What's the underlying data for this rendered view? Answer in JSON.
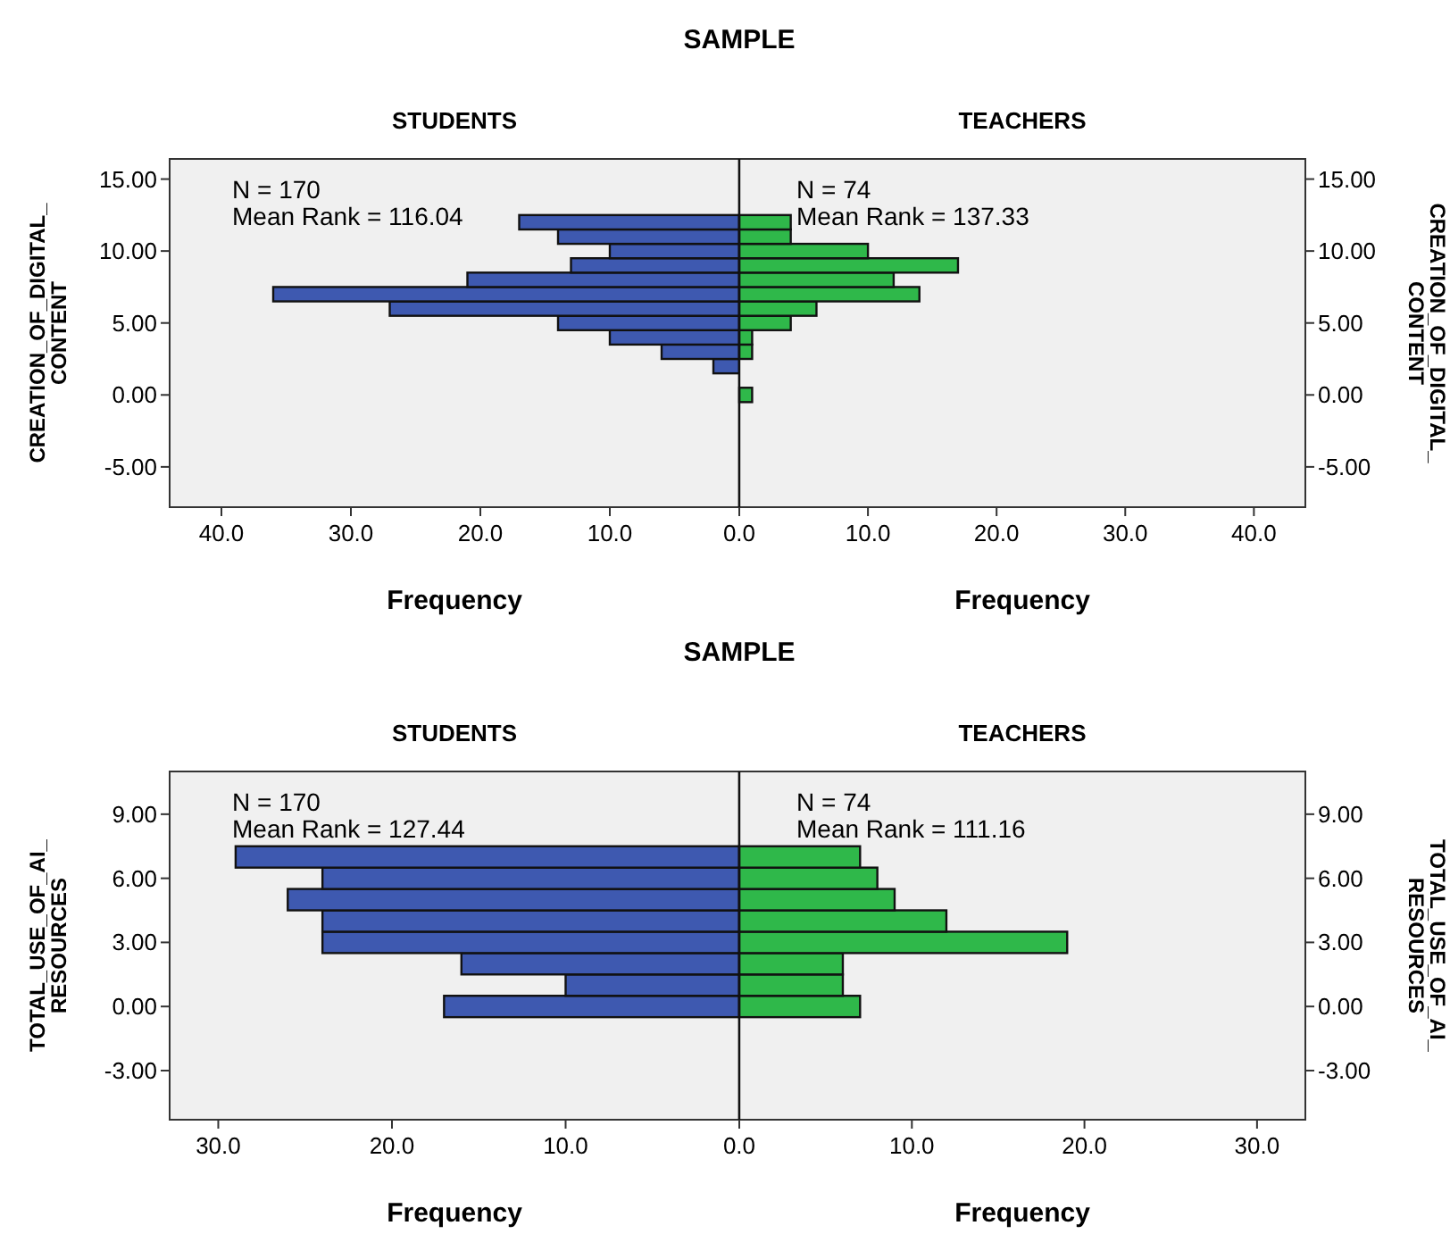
{
  "chart_data": [
    {
      "type": "histogram",
      "orientation": "horizontal",
      "title": "SAMPLE",
      "subtitle": "STUDENTS",
      "xlabel": "Frequency",
      "ylabel": "CREATION_OF_DIGITAL_\nCONTENT",
      "bins": [
        -0.5,
        0.5,
        1.5,
        2.5,
        3.5,
        4.5,
        5.5,
        6.5,
        7.5,
        8.5,
        9.5,
        10.5,
        11.5,
        12.5
      ],
      "series": [
        {
          "color": "#3e59b0",
          "values": [
            0,
            0,
            2,
            6,
            10,
            14,
            27,
            36,
            21,
            13,
            10,
            14,
            17
          ]
        }
      ],
      "xlim": [
        44,
        0
      ],
      "xticks": [
        {
          "value": 40,
          "label": "40.0"
        },
        {
          "value": 30,
          "label": "30.0"
        },
        {
          "value": 20,
          "label": "20.0"
        },
        {
          "value": 10,
          "label": "10.0"
        },
        {
          "value": 0,
          "label": "0.0"
        }
      ],
      "ylim": [
        -7.8,
        16.4
      ],
      "yticks": [
        {
          "value": -5,
          "label": "-5.00"
        },
        {
          "value": 0,
          "label": "0.00"
        },
        {
          "value": 5,
          "label": "5.00"
        },
        {
          "value": 10,
          "label": "10.00"
        },
        {
          "value": 15,
          "label": "15.00"
        }
      ],
      "annotations": [
        "N = 170",
        "Mean Rank = 116.04"
      ]
    },
    {
      "type": "histogram",
      "orientation": "horizontal",
      "subtitle": "TEACHERS",
      "xlabel": "Frequency",
      "ylabel": "CREATION_OF_DIGITAL_\nCONTENT",
      "bins": [
        -0.5,
        0.5,
        1.5,
        2.5,
        3.5,
        4.5,
        5.5,
        6.5,
        7.5,
        8.5,
        9.5,
        10.5,
        11.5,
        12.5
      ],
      "series": [
        {
          "color": "#2fb84a",
          "values": [
            1,
            0,
            0,
            1,
            1,
            4,
            6,
            14,
            12,
            17,
            10,
            4,
            4
          ]
        }
      ],
      "xlim": [
        0,
        44
      ],
      "xticks": [
        {
          "value": 0,
          "label": null
        },
        {
          "value": 10,
          "label": "10.0"
        },
        {
          "value": 20,
          "label": "20.0"
        },
        {
          "value": 30,
          "label": "30.0"
        },
        {
          "value": 40,
          "label": "40.0"
        }
      ],
      "ylim": [
        -7.8,
        16.4
      ],
      "yticks": [
        {
          "value": -5,
          "label": "-5.00"
        },
        {
          "value": 0,
          "label": "0.00"
        },
        {
          "value": 5,
          "label": "5.00"
        },
        {
          "value": 10,
          "label": "10.00"
        },
        {
          "value": 15,
          "label": "15.00"
        }
      ],
      "annotations": [
        "N = 74",
        "Mean Rank = 137.33"
      ]
    },
    {
      "type": "histogram",
      "orientation": "horizontal",
      "title": "SAMPLE",
      "subtitle": "STUDENTS",
      "xlabel": "Frequency",
      "ylabel": "TOTAL_USE_OF_AI_\nRESOURCES",
      "bins": [
        -0.5,
        0.5,
        1.5,
        2.5,
        3.5,
        4.5,
        5.5,
        6.5,
        7.5
      ],
      "series": [
        {
          "color": "#3e59b0",
          "values": [
            17,
            10,
            16,
            24,
            24,
            26,
            24,
            29
          ]
        }
      ],
      "xlim": [
        32.8,
        0
      ],
      "xticks": [
        {
          "value": 30,
          "label": "30.0"
        },
        {
          "value": 20,
          "label": "20.0"
        },
        {
          "value": 10,
          "label": "10.0"
        },
        {
          "value": 0,
          "label": "0.0"
        }
      ],
      "ylim": [
        -5.3,
        11
      ],
      "yticks": [
        {
          "value": -3,
          "label": "-3.00"
        },
        {
          "value": 0,
          "label": "0.00"
        },
        {
          "value": 3,
          "label": "3.00"
        },
        {
          "value": 6,
          "label": "6.00"
        },
        {
          "value": 9,
          "label": "9.00"
        }
      ],
      "annotations": [
        "N = 170",
        "Mean Rank = 127.44"
      ]
    },
    {
      "type": "histogram",
      "orientation": "horizontal",
      "subtitle": "TEACHERS",
      "xlabel": "Frequency",
      "ylabel": "TOTAL_USE_OF_AI_\nRESOURCES",
      "bins": [
        -0.5,
        0.5,
        1.5,
        2.5,
        3.5,
        4.5,
        5.5,
        6.5,
        7.5
      ],
      "series": [
        {
          "color": "#2fb84a",
          "values": [
            7,
            6,
            6,
            19,
            12,
            9,
            8,
            7
          ]
        }
      ],
      "xlim": [
        0,
        32.8
      ],
      "xticks": [
        {
          "value": 0,
          "label": null
        },
        {
          "value": 10,
          "label": "10.0"
        },
        {
          "value": 20,
          "label": "20.0"
        },
        {
          "value": 30,
          "label": "30.0"
        }
      ],
      "ylim": [
        -5.3,
        11
      ],
      "yticks": [
        {
          "value": -3,
          "label": "-3.00"
        },
        {
          "value": 0,
          "label": "0.00"
        },
        {
          "value": 3,
          "label": "3.00"
        },
        {
          "value": 6,
          "label": "6.00"
        },
        {
          "value": 9,
          "label": "9.00"
        }
      ],
      "annotations": [
        "N = 74",
        "Mean Rank = 111.16"
      ]
    }
  ]
}
